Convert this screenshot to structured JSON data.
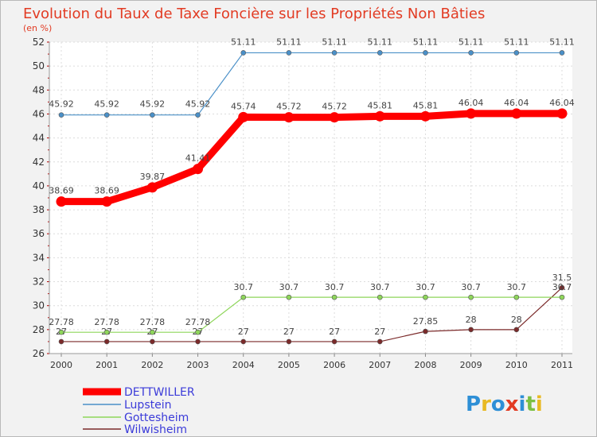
{
  "chart_data": {
    "type": "line",
    "title": "Evolution du Taux de Taxe Foncière sur les Propriétés Non Bâties",
    "unit_label": "(en %)",
    "xlabel": "",
    "ylabel": "",
    "ylim": [
      26,
      52
    ],
    "yticks": [
      26,
      28,
      30,
      32,
      34,
      36,
      38,
      40,
      42,
      44,
      46,
      48,
      50,
      52
    ],
    "x": [
      "2000",
      "2001",
      "2002",
      "2003",
      "2004",
      "2005",
      "2006",
      "2007",
      "2008",
      "2009",
      "2010",
      "2011"
    ],
    "grid": true,
    "legend_position": "bottom-left",
    "series": [
      {
        "name": "DETTWILLER",
        "color": "#ff0000",
        "values": [
          38.69,
          38.69,
          39.87,
          41.41,
          45.74,
          45.72,
          45.72,
          45.81,
          45.81,
          46.04,
          46.04,
          46.04
        ],
        "labels": [
          "38.69",
          "38.69",
          "39.87",
          "41.41",
          "45.74",
          "45.72",
          "45.72",
          "45.81",
          "45.81",
          "46.04",
          "46.04",
          "46.04"
        ]
      },
      {
        "name": "Lupstein",
        "color": "#4a90c8",
        "values": [
          45.92,
          45.92,
          45.92,
          45.92,
          51.11,
          51.11,
          51.11,
          51.11,
          51.11,
          51.11,
          51.11,
          51.11
        ],
        "labels": [
          "45.92",
          "45.92",
          "45.92",
          "45.92",
          "51.11",
          "51.11",
          "51.11",
          "51.11",
          "51.11",
          "51.11",
          "51.11",
          "51.11"
        ]
      },
      {
        "name": "Gottesheim",
        "color": "#8ed65a",
        "values": [
          27.78,
          27.78,
          27.78,
          27.78,
          30.7,
          30.7,
          30.7,
          30.7,
          30.7,
          30.7,
          30.7,
          30.7
        ],
        "labels": [
          "27.78",
          "27.78",
          "27.78",
          "27.78",
          "30.7",
          "30.7",
          "30.7",
          "30.7",
          "30.7",
          "30.7",
          "30.7",
          "30.7"
        ]
      },
      {
        "name": "Wilwisheim",
        "color": "#7b2a2a",
        "values": [
          27,
          27,
          27,
          27,
          27,
          27,
          27,
          27,
          27.85,
          28,
          28,
          31.5
        ],
        "labels": [
          "27",
          "27",
          "27",
          "27",
          "27",
          "27",
          "27",
          "27",
          "27.85",
          "28",
          "28",
          "31.5"
        ]
      }
    ]
  },
  "logo": {
    "text": "Proxiti"
  }
}
